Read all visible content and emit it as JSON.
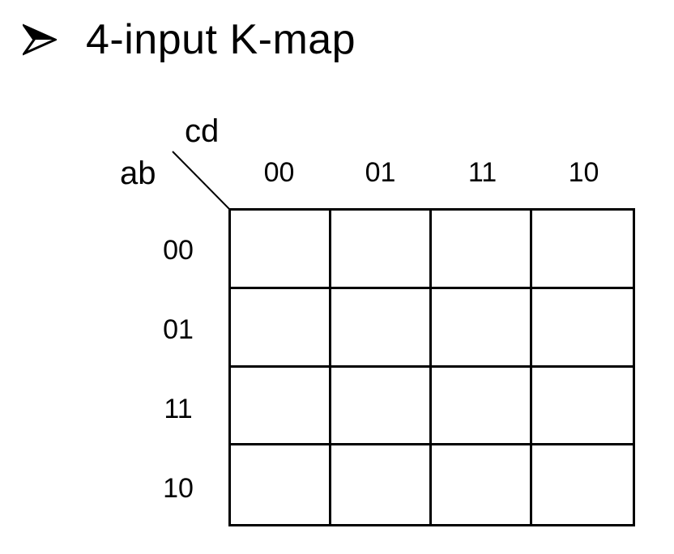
{
  "slide": {
    "bullet_icon": "arrowhead-bullet-icon",
    "title": "4-input K-map"
  },
  "kmap": {
    "column_variable": "cd",
    "row_variable": "ab",
    "column_labels": [
      "00",
      "01",
      "11",
      "10"
    ],
    "row_labels": [
      "00",
      "01",
      "11",
      "10"
    ],
    "cells": [
      [
        "",
        "",
        "",
        ""
      ],
      [
        "",
        "",
        "",
        ""
      ],
      [
        "",
        "",
        "",
        ""
      ],
      [
        "",
        "",
        "",
        ""
      ]
    ]
  }
}
